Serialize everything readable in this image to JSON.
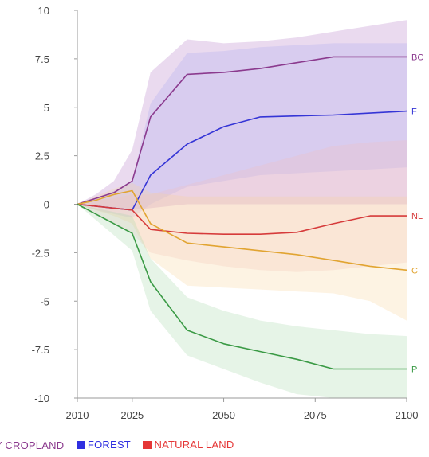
{
  "chart_data": {
    "type": "line",
    "x": [
      2010,
      2015,
      2020,
      2025,
      2030,
      2040,
      2050,
      2060,
      2070,
      2080,
      2090,
      2100
    ],
    "xticks": [
      2010,
      2025,
      2050,
      2075,
      2100
    ],
    "xtick_labels": [
      "2010",
      "2025",
      "2050",
      "2075",
      "2100"
    ],
    "yticks": [
      10,
      7.5,
      5,
      2.5,
      0,
      -2.5,
      -5,
      -7.5,
      -10
    ],
    "ytick_labels": [
      "10",
      "7.5",
      "5",
      "2.5",
      "0",
      "-2.5",
      "-5",
      "-7.5",
      "-10"
    ],
    "xlim": [
      2010,
      2100
    ],
    "ylim": [
      -10,
      10
    ],
    "grid": false,
    "series": [
      {
        "name": "BC",
        "color": "#8b3a8e",
        "band_color": "#b37ac6",
        "values": [
          0,
          0.3,
          0.6,
          1.2,
          4.5,
          6.7,
          6.8,
          7.0,
          7.3,
          7.6,
          7.6,
          7.6
        ],
        "lower": [
          0,
          -0.1,
          -0.2,
          -0.3,
          -0.2,
          0.0,
          0.0,
          0.0,
          0.0,
          0.0,
          0.0,
          0.0
        ],
        "upper": [
          0,
          0.5,
          1.2,
          2.8,
          6.8,
          8.5,
          8.3,
          8.4,
          8.6,
          8.9,
          9.2,
          9.5
        ]
      },
      {
        "name": "F",
        "color": "#3535d6",
        "band_color": "#a9a9f2",
        "values": [
          0,
          -0.1,
          -0.2,
          -0.3,
          1.5,
          3.1,
          4.0,
          4.5,
          4.55,
          4.6,
          4.7,
          4.8
        ],
        "lower": [
          0,
          -0.3,
          -0.5,
          -0.7,
          0.0,
          0.9,
          1.2,
          1.5,
          1.6,
          1.7,
          1.8,
          1.9
        ],
        "upper": [
          0,
          0.3,
          0.7,
          1.2,
          5.2,
          7.8,
          7.9,
          8.1,
          8.2,
          8.3,
          8.3,
          8.3
        ]
      },
      {
        "name": "NL",
        "color": "#d63b3b",
        "band_color": "#f0c0c0",
        "values": [
          0,
          -0.1,
          -0.2,
          -0.3,
          -1.3,
          -1.5,
          -1.55,
          -1.55,
          -1.45,
          -1.0,
          -0.6,
          -0.6
        ],
        "lower": [
          0,
          -0.5,
          -1.0,
          -1.5,
          -2.5,
          -2.9,
          -3.2,
          -3.4,
          -3.5,
          -3.4,
          -3.2,
          -3.0
        ],
        "upper": [
          0,
          0.2,
          0.3,
          0.5,
          0.5,
          1.0,
          1.5,
          2.0,
          2.5,
          3.0,
          3.2,
          3.3
        ]
      },
      {
        "name": "C",
        "color": "#e1a431",
        "band_color": "#f7d49a",
        "values": [
          0,
          0.2,
          0.5,
          0.7,
          -1.0,
          -2.0,
          -2.2,
          -2.4,
          -2.6,
          -2.9,
          -3.2,
          -3.4
        ],
        "lower": [
          0,
          -0.3,
          -0.6,
          -1.0,
          -2.8,
          -4.2,
          -4.3,
          -4.4,
          -4.5,
          -4.6,
          -5.0,
          -6.0
        ],
        "upper": [
          0,
          0.4,
          0.8,
          1.1,
          0.6,
          0.4,
          0.4,
          0.4,
          0.4,
          0.4,
          0.4,
          0.4
        ]
      },
      {
        "name": "P",
        "color": "#3a9a45",
        "band_color": "#a4d6a8",
        "values": [
          0,
          -0.5,
          -1.0,
          -1.5,
          -4.0,
          -6.5,
          -7.2,
          -7.6,
          -8.0,
          -8.5,
          -8.5,
          -8.5
        ],
        "lower": [
          0,
          -0.8,
          -1.6,
          -2.4,
          -5.5,
          -7.8,
          -8.5,
          -9.2,
          -9.8,
          -10.0,
          -10.0,
          -10.0
        ],
        "upper": [
          0,
          -0.2,
          -0.4,
          -0.6,
          -2.8,
          -4.8,
          -5.5,
          -6.0,
          -6.3,
          -6.5,
          -6.7,
          -6.8
        ]
      }
    ]
  },
  "legend": [
    {
      "label": "Y CROPLAND",
      "color": "#8b3a8e"
    },
    {
      "label": "FOREST",
      "color": "#2f2fe0"
    },
    {
      "label": "NATURAL LAND",
      "color": "#e53636"
    }
  ]
}
